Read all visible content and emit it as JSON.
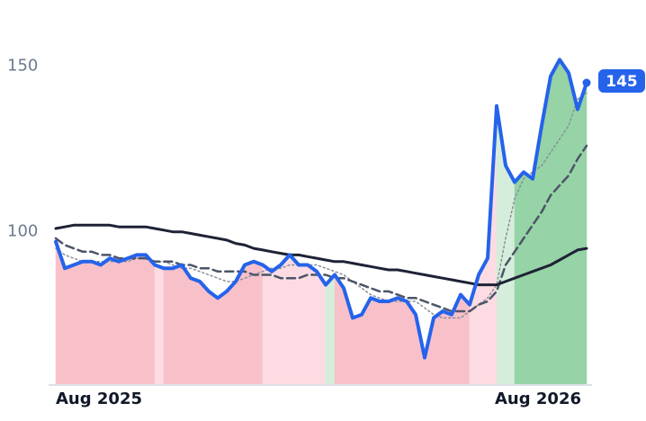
{
  "chart_data": {
    "type": "line",
    "categories": [
      "Aug 2025",
      null,
      null,
      null,
      null,
      null,
      null,
      null,
      null,
      null,
      null,
      null,
      null,
      null,
      null,
      null,
      null,
      null,
      null,
      null,
      null,
      null,
      null,
      null,
      null,
      null,
      null,
      null,
      null,
      null,
      null,
      null,
      null,
      null,
      null,
      null,
      null,
      null,
      null,
      null,
      null,
      null,
      null,
      null,
      null,
      null,
      null,
      null,
      null,
      null,
      null,
      null,
      null,
      null,
      "Aug 2026",
      null,
      null,
      null,
      null,
      null
    ],
    "ylim": [
      54,
      170
    ],
    "yticks": [
      100,
      150
    ],
    "zones": [
      "down",
      "down",
      "down",
      "down",
      "down",
      "down",
      "down",
      "down",
      "down",
      "down",
      "down",
      "down-light",
      "down",
      "down",
      "down",
      "down",
      "down",
      "down",
      "down",
      "down",
      "down",
      "down",
      "down",
      "down-light",
      "down-light",
      "down-light",
      "down-light",
      "down-light",
      "down-light",
      "down-light",
      "up-light",
      "down",
      "down",
      "down",
      "down",
      "down",
      "down",
      "down",
      "down",
      "down",
      "down",
      "down",
      "down",
      "down",
      "down",
      "down",
      "down-light",
      "down-light",
      "down-light",
      "up-light",
      "up-light",
      "up",
      "up",
      "up",
      "up",
      "up",
      "up",
      "up",
      "up",
      "up"
    ],
    "zone_colors": {
      "down": "#f8c1ca",
      "down-light": "#fcdce2",
      "up-light": "#d5eedc",
      "up": "#96d3a6"
    },
    "series": [
      {
        "color": "#2563eb",
        "width": 4,
        "dash": "none",
        "values": [
          97,
          89,
          90,
          91,
          91,
          90,
          92,
          91,
          92,
          93,
          93,
          90,
          89,
          89,
          90,
          86,
          85,
          82,
          80,
          82,
          85,
          90,
          91,
          90,
          88,
          90,
          93,
          90,
          90,
          88,
          84,
          87,
          83,
          74,
          75,
          80,
          79,
          79,
          80,
          79,
          75,
          62,
          74,
          76,
          75,
          81,
          78,
          87,
          92,
          138,
          120,
          115,
          118,
          116,
          132,
          147,
          152,
          148,
          137,
          145
        ]
      },
      {
        "color": "#8a9099",
        "width": 1.5,
        "dash": "2 3",
        "values": [
          95,
          93,
          92,
          91,
          91,
          91,
          91,
          91,
          91,
          92,
          92,
          91,
          91,
          90,
          89,
          89,
          88,
          87,
          86,
          85,
          85,
          86,
          87,
          88,
          89,
          89,
          90,
          90,
          90,
          90,
          89,
          88,
          87,
          85,
          83,
          81,
          80,
          79,
          79,
          79,
          79,
          77,
          75,
          74,
          74,
          74,
          76,
          78,
          80,
          84,
          98,
          110,
          116,
          118,
          120,
          124,
          128,
          132,
          140,
          142
        ]
      },
      {
        "color": "#4b5568",
        "width": 2.5,
        "dash": "9 5",
        "values": [
          98,
          96,
          95,
          94,
          94,
          93,
          93,
          92,
          92,
          92,
          92,
          91,
          91,
          91,
          90,
          90,
          89,
          89,
          88,
          88,
          88,
          88,
          87,
          87,
          87,
          86,
          86,
          86,
          87,
          87,
          87,
          86,
          86,
          85,
          84,
          83,
          82,
          82,
          81,
          80,
          80,
          79,
          78,
          77,
          76,
          76,
          76,
          78,
          79,
          82,
          90,
          94,
          98,
          102,
          106,
          111,
          114,
          117,
          122,
          126
        ]
      },
      {
        "color": "#1e2235",
        "width": 3,
        "dash": "none",
        "values": [
          101,
          101.5,
          102,
          102,
          102,
          102,
          102,
          101.5,
          101.5,
          101.5,
          101.5,
          101,
          100.5,
          100,
          100,
          99.5,
          99,
          98.5,
          98,
          97.5,
          96.5,
          96,
          95,
          94.5,
          94,
          93.5,
          93,
          93,
          92.5,
          92,
          91.5,
          91,
          91,
          90.5,
          90,
          89.5,
          89,
          88.5,
          88.5,
          88,
          87.5,
          87,
          86.5,
          86,
          85.5,
          85,
          84.5,
          84,
          84,
          84,
          85,
          86,
          87,
          88,
          89,
          90,
          91.5,
          93,
          94.5,
          95
        ]
      }
    ]
  }
}
